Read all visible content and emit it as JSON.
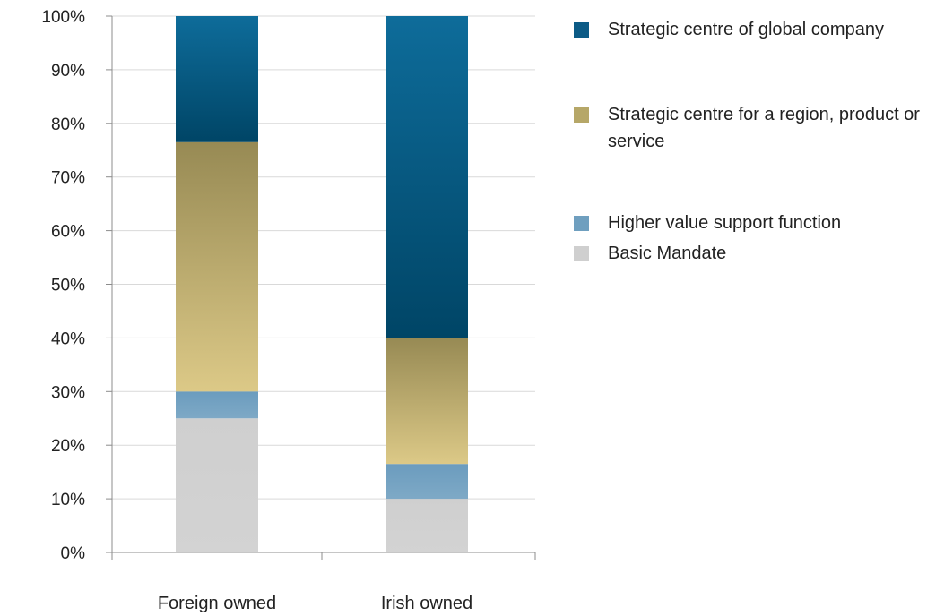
{
  "chart_data": {
    "type": "bar",
    "stacked": true,
    "categories": [
      "Foreign owned",
      "Irish owned"
    ],
    "series": [
      {
        "name": "Basic Mandate",
        "values": [
          25,
          10
        ],
        "color": "#cfcfcf"
      },
      {
        "name": "Higher value support function",
        "values": [
          5,
          6.5
        ],
        "color": "#6f9fbf"
      },
      {
        "name": "Strategic centre for a region, product or service",
        "values": [
          46.5,
          23.5
        ],
        "color": "#b6a768"
      },
      {
        "name": "Strategic centre of global company",
        "values": [
          23.5,
          60
        ],
        "color": "#0c5b86"
      }
    ],
    "legend_order": [
      "Strategic centre of global company",
      "Strategic centre for a region, product or service",
      "Higher value support function",
      "Basic Mandate"
    ],
    "ylim": [
      0,
      100
    ],
    "y_ticks": [
      "0%",
      "10%",
      "20%",
      "30%",
      "40%",
      "50%",
      "60%",
      "70%",
      "80%",
      "90%",
      "100%"
    ],
    "grid": true,
    "legend_position": "right"
  }
}
